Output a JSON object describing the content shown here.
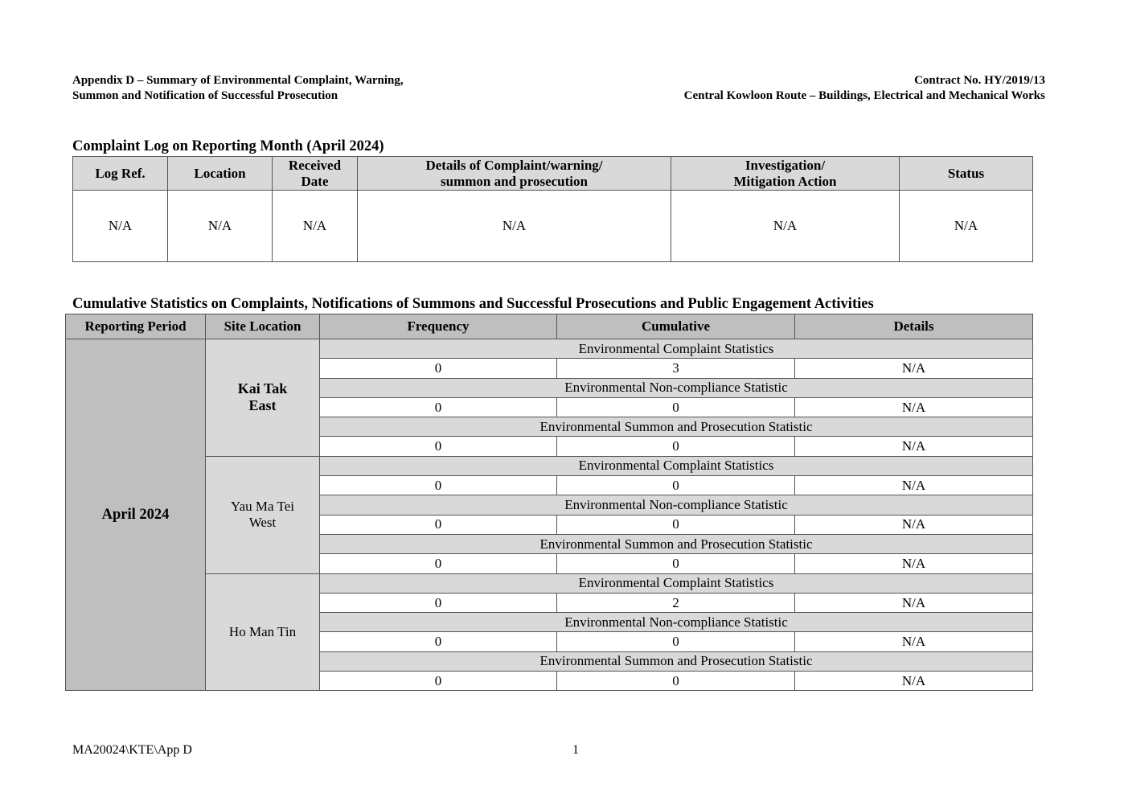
{
  "header": {
    "left_line1": "Appendix D – Summary of Environmental Complaint, Warning,",
    "left_line2": "Summon and Notification of Successful Prosecution",
    "right_line1": "Contract No. HY/2019/13",
    "right_line2": "Central Kowloon Route – Buildings, Electrical and Mechanical Works"
  },
  "complaint_log": {
    "title": "Complaint Log on Reporting Month (April 2024)",
    "columns": [
      {
        "l1": "Log Ref.",
        "l2": ""
      },
      {
        "l1": "Location",
        "l2": ""
      },
      {
        "l1": "Received",
        "l2": "Date"
      },
      {
        "l1": "Details of Complaint/warning/",
        "l2": "summon and prosecution"
      },
      {
        "l1": "Investigation/",
        "l2": "Mitigation Action"
      },
      {
        "l1": "Status",
        "l2": ""
      }
    ],
    "row": [
      "N/A",
      "N/A",
      "N/A",
      "N/A",
      "N/A",
      "N/A"
    ]
  },
  "cumulative": {
    "title": "Cumulative Statistics on Complaints, Notifications of Summons and Successful Prosecutions and Public Engagement Activities",
    "columns": [
      "Reporting Period",
      "Site Location",
      "Frequency",
      "Cumulative",
      "Details"
    ],
    "period": "April 2024",
    "sites": [
      {
        "name": "Kai Tak East",
        "bold": true,
        "stats": [
          {
            "category": "Environmental Complaint Statistics",
            "frequency": "0",
            "cumulative": "3",
            "details": "N/A"
          },
          {
            "category": "Environmental Non-compliance Statistic",
            "frequency": "0",
            "cumulative": "0",
            "details": "N/A"
          },
          {
            "category": "Environmental Summon and Prosecution Statistic",
            "frequency": "0",
            "cumulative": "0",
            "details": "N/A"
          }
        ]
      },
      {
        "name": "Yau Ma Tei West",
        "bold": false,
        "stats": [
          {
            "category": "Environmental Complaint Statistics",
            "frequency": "0",
            "cumulative": "0",
            "details": "N/A"
          },
          {
            "category": "Environmental Non-compliance Statistic",
            "frequency": "0",
            "cumulative": "0",
            "details": "N/A"
          },
          {
            "category": "Environmental Summon and Prosecution Statistic",
            "frequency": "0",
            "cumulative": "0",
            "details": "N/A"
          }
        ]
      },
      {
        "name": "Ho Man Tin",
        "bold": false,
        "stats": [
          {
            "category": "Environmental Complaint Statistics",
            "frequency": "0",
            "cumulative": "2",
            "details": "N/A"
          },
          {
            "category": "Environmental Non-compliance Statistic",
            "frequency": "0",
            "cumulative": "0",
            "details": "N/A"
          },
          {
            "category": "Environmental Summon and Prosecution Statistic",
            "frequency": "0",
            "cumulative": "0",
            "details": "N/A"
          }
        ]
      }
    ]
  },
  "footer": {
    "ref": "MA20024\\KTE\\App D",
    "page": "1"
  }
}
